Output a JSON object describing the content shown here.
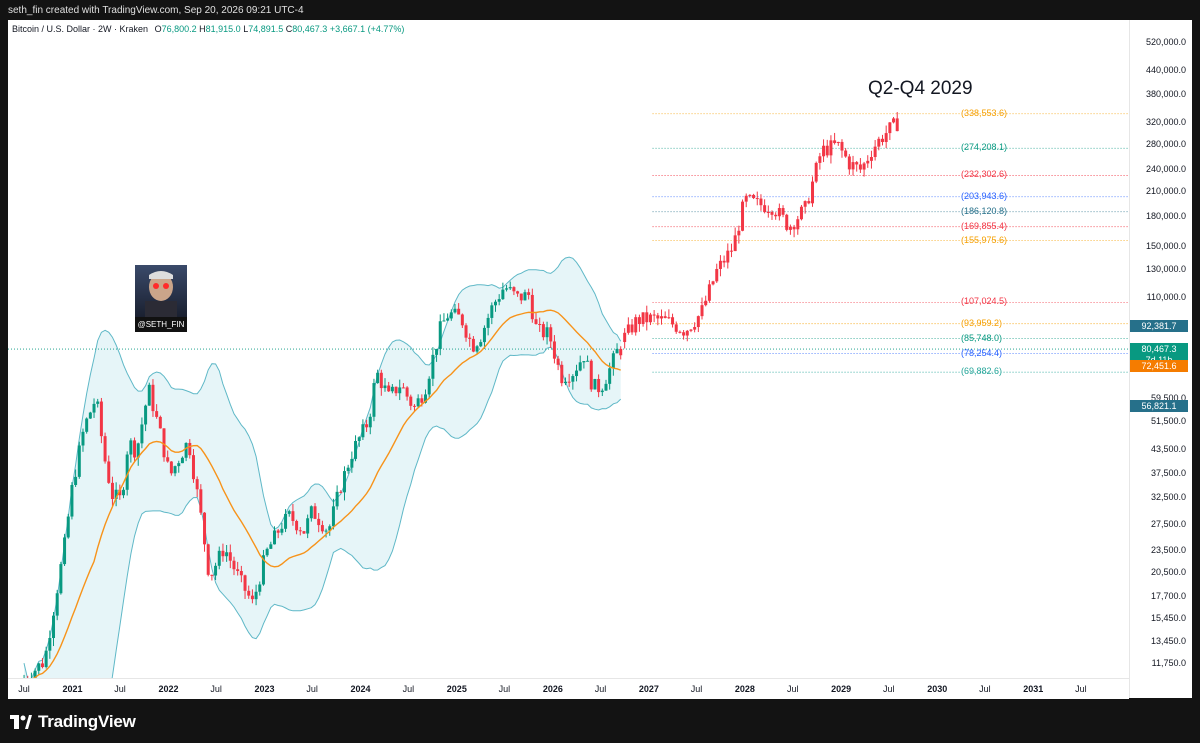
{
  "header": {
    "title": "seth_fin created with TradingView.com, Sep 20, 2026 09:21 UTC-4"
  },
  "legend": {
    "symbol": "Bitcoin / U.S. Dollar · 2W · Kraken",
    "o_label": "O",
    "o": "76,800.2",
    "h_label": "H",
    "h": "81,915.0",
    "l_label": "L",
    "l": "74,891.5",
    "c_label": "C",
    "c": "80,467.3",
    "change": "+3,667.1 (+4.77%)"
  },
  "annotation": "Q2-Q4 2029",
  "avatar": {
    "name": "@SETH_FIN"
  },
  "footer": {
    "brand": "TradingView"
  },
  "colors": {
    "up": "#089981",
    "down": "#f23645",
    "projection": "#f23645",
    "ma": "#f7931a",
    "band": "#5fb8c7",
    "band_fill": "#e6f5f8"
  },
  "chart_data": {
    "type": "candlestick",
    "y_scale": "log",
    "ylim": [
      10800,
      600000
    ],
    "xlim": [
      "2020-05-01",
      "2031-12-31"
    ],
    "price_ticks": [
      "520,000.0",
      "440,000.0",
      "380,000.0",
      "320,000.0",
      "280,000.0",
      "240,000.0",
      "210,000.0",
      "180,000.0",
      "150,000.0",
      "130,000.0",
      "110,000.0",
      "92,381.7",
      "80,467.3",
      "72,451.6",
      "59,500.0",
      "56,821.1",
      "51,500.0",
      "43,500.0",
      "37,500.0",
      "32,500.0",
      "27,500.0",
      "23,500.0",
      "20,500.0",
      "17,700.0",
      "15,450.0",
      "13,450.0",
      "11,750.0"
    ],
    "time_ticks": [
      {
        "label": "Jul",
        "date": "2020-07-01"
      },
      {
        "label": "2021",
        "date": "2021-01-01"
      },
      {
        "label": "Jul",
        "date": "2021-07-01"
      },
      {
        "label": "2022",
        "date": "2022-01-01"
      },
      {
        "label": "Jul",
        "date": "2022-07-01"
      },
      {
        "label": "2023",
        "date": "2023-01-01"
      },
      {
        "label": "Jul",
        "date": "2023-07-01"
      },
      {
        "label": "2024",
        "date": "2024-01-01"
      },
      {
        "label": "Jul",
        "date": "2024-07-01"
      },
      {
        "label": "2025",
        "date": "2025-01-01"
      },
      {
        "label": "Jul",
        "date": "2025-07-01"
      },
      {
        "label": "2026",
        "date": "2026-01-01"
      },
      {
        "label": "Jul",
        "date": "2026-07-01"
      },
      {
        "label": "2027",
        "date": "2027-01-01"
      },
      {
        "label": "Jul",
        "date": "2027-07-01"
      },
      {
        "label": "2028",
        "date": "2028-01-01"
      },
      {
        "label": "Jul",
        "date": "2028-07-01"
      },
      {
        "label": "2029",
        "date": "2029-01-01"
      },
      {
        "label": "Jul",
        "date": "2029-07-01"
      },
      {
        "label": "2030",
        "date": "2030-01-01"
      },
      {
        "label": "Jul",
        "date": "2030-07-01"
      },
      {
        "label": "2031",
        "date": "2031-01-01"
      },
      {
        "label": "Jul",
        "date": "2031-07-01"
      }
    ],
    "price_tags": [
      {
        "label": "92,381.7",
        "value": 92381.7,
        "color": "#26708a"
      },
      {
        "label": "80,467.3",
        "value": 80467.3,
        "color": "#089981",
        "sub": "7d 11h"
      },
      {
        "label": "72,451.6",
        "value": 72451.6,
        "color": "#f57c00"
      },
      {
        "label": "56,821.1",
        "value": 56821.1,
        "color": "#26708a"
      }
    ],
    "levels": [
      {
        "label": "(338,553.6)",
        "value": 338553.6,
        "color": "#f59f00"
      },
      {
        "label": "(274,208.1)",
        "value": 274208.1,
        "color": "#089981"
      },
      {
        "label": "(232,302.6)",
        "value": 232302.6,
        "color": "#f23645"
      },
      {
        "label": "(203,943.6)",
        "value": 203943.6,
        "color": "#2962ff"
      },
      {
        "label": "(186,120.8)",
        "value": 186120.8,
        "color": "#26708a"
      },
      {
        "label": "(169,855.4)",
        "value": 169855.4,
        "color": "#f23645"
      },
      {
        "label": "(155,975.6)",
        "value": 155975.6,
        "color": "#f59f00"
      },
      {
        "label": "(107,024.5)",
        "value": 107024.5,
        "color": "#f23645"
      },
      {
        "label": "(93,959.2)",
        "value": 93959.2,
        "color": "#f59f00"
      },
      {
        "label": "(85,748.0)",
        "value": 85748.0,
        "color": "#089981"
      },
      {
        "label": "(78,254.4)",
        "value": 78254.4,
        "color": "#2962ff"
      },
      {
        "label": "(69,882.6)",
        "value": 69882.6,
        "color": "#26a69a"
      }
    ],
    "history_keypoints": [
      [
        "2020-07-01",
        10500
      ],
      [
        "2020-10-01",
        12000
      ],
      [
        "2020-12-15",
        24000
      ],
      [
        "2021-01-15",
        35000
      ],
      [
        "2021-03-01",
        50000
      ],
      [
        "2021-04-15",
        60000
      ],
      [
        "2021-05-15",
        42000
      ],
      [
        "2021-06-15",
        33000
      ],
      [
        "2021-07-20",
        32000
      ],
      [
        "2021-08-15",
        46000
      ],
      [
        "2021-09-15",
        43000
      ],
      [
        "2021-11-01",
        63000
      ],
      [
        "2021-12-15",
        48000
      ],
      [
        "2022-01-20",
        37000
      ],
      [
        "2022-03-01",
        42000
      ],
      [
        "2022-04-01",
        46000
      ],
      [
        "2022-05-15",
        30000
      ],
      [
        "2022-06-20",
        20000
      ],
      [
        "2022-08-15",
        24000
      ],
      [
        "2022-10-15",
        19500
      ],
      [
        "2022-12-01",
        17000
      ],
      [
        "2023-01-20",
        23000
      ],
      [
        "2023-03-20",
        27500
      ],
      [
        "2023-04-20",
        29000
      ],
      [
        "2023-06-15",
        26500
      ],
      [
        "2023-07-15",
        30000
      ],
      [
        "2023-09-15",
        26500
      ],
      [
        "2023-11-01",
        35000
      ],
      [
        "2023-12-15",
        43000
      ],
      [
        "2024-02-15",
        52000
      ],
      [
        "2024-03-15",
        70000
      ],
      [
        "2024-05-01",
        60000
      ],
      [
        "2024-06-15",
        65000
      ],
      [
        "2024-08-05",
        56000
      ],
      [
        "2024-09-15",
        63000
      ],
      [
        "2024-11-15",
        92000
      ],
      [
        "2024-12-15",
        100000
      ],
      [
        "2025-02-01",
        97000
      ],
      [
        "2025-03-15",
        82000
      ],
      [
        "2025-04-15",
        87000
      ],
      [
        "2025-06-01",
        105000
      ],
      [
        "2025-07-15",
        118000
      ],
      [
        "2025-09-01",
        110000
      ],
      [
        "2025-10-15",
        112000
      ],
      [
        "2025-11-15",
        90000
      ],
      [
        "2026-01-01",
        88000
      ],
      [
        "2026-02-15",
        68000
      ],
      [
        "2026-04-01",
        70000
      ],
      [
        "2026-05-15",
        78000
      ],
      [
        "2026-06-15",
        64000
      ],
      [
        "2026-07-15",
        63500
      ],
      [
        "2026-08-15",
        70000
      ],
      [
        "2026-09-20",
        80467
      ]
    ],
    "projection_keypoints": [
      [
        "2026-10-01",
        84000
      ],
      [
        "2026-12-01",
        96000
      ],
      [
        "2027-02-01",
        97000
      ],
      [
        "2027-04-01",
        95000
      ],
      [
        "2027-06-01",
        90000
      ],
      [
        "2027-08-01",
        100000
      ],
      [
        "2027-10-01",
        130000
      ],
      [
        "2027-12-01",
        150000
      ],
      [
        "2028-01-15",
        200000
      ],
      [
        "2028-03-01",
        195000
      ],
      [
        "2028-05-01",
        192000
      ],
      [
        "2028-07-01",
        170000
      ],
      [
        "2028-09-01",
        190000
      ],
      [
        "2028-11-01",
        270000
      ],
      [
        "2029-01-01",
        280000
      ],
      [
        "2029-02-15",
        250000
      ],
      [
        "2029-04-01",
        240000
      ],
      [
        "2029-05-15",
        275000
      ],
      [
        "2029-07-01",
        300000
      ],
      [
        "2029-08-15",
        320000
      ]
    ]
  }
}
